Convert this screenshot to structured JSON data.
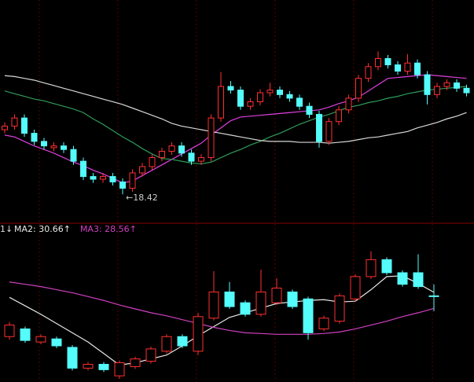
{
  "chart_data": [
    {
      "type": "candlestick",
      "annotation": "←18.42",
      "up_color": "#ff3030",
      "down_color": "#54fcfc",
      "ylim": [
        16,
        40
      ],
      "open": [
        25.6,
        26.0,
        26.9,
        25.2,
        24.3,
        23.6,
        23.8,
        23.4,
        22.1,
        20.4,
        20.1,
        20.4,
        19.8,
        19.1,
        20.8,
        21.5,
        22.5,
        23.2,
        23.8,
        23.0,
        22.1,
        22.5,
        26.9,
        30.4,
        30.0,
        28.2,
        28.7,
        29.7,
        30.0,
        29.5,
        29.1,
        28.2,
        27.3,
        24.3,
        26.5,
        27.8,
        29.1,
        31.3,
        32.6,
        33.5,
        32.8,
        32.1,
        33.0,
        31.7,
        29.5,
        30.4,
        30.8,
        30.2
      ],
      "high": [
        26.4,
        27.3,
        27.3,
        25.6,
        24.7,
        24.2,
        24.2,
        23.8,
        22.5,
        20.8,
        20.8,
        20.8,
        20.2,
        21.2,
        21.9,
        22.9,
        23.6,
        24.2,
        24.2,
        23.4,
        22.9,
        27.3,
        32.0,
        31.0,
        30.4,
        29.1,
        30.1,
        30.8,
        30.4,
        29.9,
        29.5,
        28.6,
        27.7,
        26.9,
        28.2,
        29.5,
        31.7,
        33.0,
        34.3,
        33.9,
        33.2,
        34.0,
        33.4,
        32.1,
        30.8,
        31.2,
        31.2,
        30.6
      ],
      "low": [
        25.2,
        25.6,
        24.8,
        23.9,
        23.4,
        23.2,
        23.0,
        21.7,
        20.0,
        19.7,
        19.7,
        19.4,
        18.42,
        18.7,
        20.4,
        21.1,
        22.1,
        22.8,
        22.6,
        21.7,
        21.7,
        22.1,
        26.5,
        29.6,
        27.8,
        27.8,
        28.3,
        29.3,
        29.1,
        28.7,
        27.8,
        26.9,
        23.6,
        23.9,
        26.1,
        27.4,
        28.7,
        30.9,
        32.2,
        32.4,
        31.7,
        31.7,
        31.3,
        28.4,
        29.1,
        30.0,
        29.8,
        29.3
      ],
      "close": [
        26.0,
        26.9,
        25.2,
        24.3,
        23.8,
        23.8,
        23.4,
        22.1,
        20.4,
        20.1,
        20.4,
        19.8,
        19.1,
        20.8,
        21.5,
        22.5,
        23.2,
        23.8,
        23.0,
        22.1,
        22.5,
        26.9,
        30.4,
        30.0,
        28.2,
        28.7,
        29.7,
        30.0,
        29.5,
        29.1,
        28.2,
        27.3,
        24.3,
        26.5,
        27.8,
        29.1,
        31.3,
        32.6,
        33.5,
        32.8,
        32.1,
        33.0,
        31.7,
        29.5,
        30.4,
        30.8,
        30.2,
        29.7
      ],
      "series": [
        {
          "color": "#e040e0",
          "values": [
            25.0,
            24.8,
            24.3,
            23.8,
            23.4,
            23.0,
            22.5,
            22.0,
            21.6,
            21.1,
            20.7,
            20.2,
            19.7,
            19.9,
            20.5,
            21.1,
            21.7,
            22.3,
            22.9,
            23.5,
            24.1,
            25.0,
            25.8,
            26.6,
            27.0,
            27.1,
            27.2,
            27.3,
            27.4,
            27.5,
            27.6,
            27.7,
            27.8,
            28.1,
            28.5,
            28.8,
            29.2,
            29.9,
            30.6,
            31.3,
            31.4,
            31.5,
            31.6,
            31.7,
            31.6,
            31.5,
            31.4,
            31.3
          ]
        },
        {
          "color": "#2e9b5a",
          "values": [
            29.9,
            29.6,
            29.3,
            29.0,
            28.8,
            28.5,
            28.2,
            27.9,
            27.5,
            26.8,
            26.2,
            25.5,
            24.8,
            24.2,
            23.5,
            22.9,
            22.4,
            22.3,
            22.1,
            21.9,
            21.8,
            22.0,
            22.5,
            23.0,
            23.4,
            23.9,
            24.3,
            24.8,
            25.2,
            25.7,
            26.2,
            26.6,
            27.0,
            27.3,
            27.7,
            28.1,
            28.3,
            28.6,
            28.8,
            29.1,
            29.3,
            29.6,
            29.8,
            30.0,
            30.1,
            30.2,
            30.3,
            30.4
          ]
        },
        {
          "color": "#d8d8d8",
          "values": [
            31.6,
            31.5,
            31.3,
            31.1,
            30.8,
            30.5,
            30.2,
            29.9,
            29.6,
            29.3,
            29.0,
            28.7,
            28.4,
            28.0,
            27.6,
            27.2,
            26.8,
            26.3,
            26.0,
            25.8,
            25.6,
            25.4,
            25.2,
            25.0,
            24.8,
            24.6,
            24.4,
            24.3,
            24.3,
            24.3,
            24.2,
            24.2,
            24.2,
            24.1,
            24.2,
            24.3,
            24.5,
            24.7,
            24.8,
            25.0,
            25.2,
            25.4,
            25.8,
            26.1,
            26.4,
            26.8,
            27.1,
            27.5
          ]
        }
      ]
    },
    {
      "type": "candlestick",
      "corner_label": "1↓",
      "up_color": "#ff3030",
      "down_color": "#54fcfc",
      "ylim": [
        19,
        38
      ],
      "open": [
        24.9,
        25.9,
        24.2,
        24.6,
        23.5,
        20.8,
        21.3,
        19.8,
        21.0,
        21.7,
        23.0,
        24.9,
        23.0,
        27.3,
        30.7,
        29.3,
        27.8,
        29.3,
        30.7,
        29.8,
        25.9,
        26.9,
        29.8,
        32.7,
        34.9,
        33.2,
        33.2,
        30.2
      ],
      "high": [
        26.8,
        26.2,
        25.2,
        24.9,
        23.8,
        21.6,
        21.6,
        21.8,
        22.3,
        23.6,
        25.2,
        25.2,
        28.0,
        33.4,
        32.0,
        29.6,
        33.6,
        32.5,
        31.0,
        30.1,
        27.6,
        30.5,
        33.0,
        36.0,
        35.2,
        33.5,
        35.6,
        31.7
      ],
      "low": [
        24.5,
        24.1,
        23.9,
        23.4,
        20.5,
        20.5,
        20.3,
        19.4,
        20.7,
        21.4,
        22.7,
        23.4,
        22.5,
        27.0,
        28.5,
        27.5,
        27.5,
        29.0,
        28.5,
        24.5,
        25.6,
        26.6,
        29.5,
        32.4,
        32.9,
        31.4,
        31.1,
        28.2
      ],
      "close": [
        26.4,
        24.4,
        24.9,
        23.7,
        20.8,
        21.3,
        20.6,
        21.5,
        22.0,
        23.3,
        24.9,
        23.7,
        27.5,
        30.7,
        28.8,
        27.8,
        30.7,
        31.2,
        28.8,
        25.4,
        27.3,
        30.2,
        32.7,
        34.9,
        33.2,
        31.7,
        31.4,
        30.1
      ],
      "series": [
        {
          "name": "MA2: 30.66↑",
          "color": "#e8e8e8",
          "values": [
            30.0,
            28.9,
            27.8,
            26.6,
            25.4,
            24.2,
            22.7,
            21.2,
            21.5,
            22.0,
            22.5,
            23.7,
            25.0,
            26.2,
            27.4,
            28.0,
            28.6,
            29.2,
            29.4,
            29.6,
            29.7,
            29.4,
            29.5,
            31.0,
            32.7,
            32.8,
            31.8,
            30.66
          ]
        },
        {
          "name": "MA3: 28.56↑",
          "color": "#d040c0",
          "values": [
            32.0,
            31.7,
            31.4,
            31.0,
            30.6,
            30.1,
            29.6,
            29.0,
            28.5,
            28.0,
            27.6,
            27.1,
            26.6,
            26.1,
            25.7,
            25.4,
            25.3,
            25.2,
            25.2,
            25.2,
            25.3,
            25.5,
            25.9,
            26.4,
            26.9,
            27.5,
            28.0,
            28.56
          ]
        }
      ]
    }
  ]
}
